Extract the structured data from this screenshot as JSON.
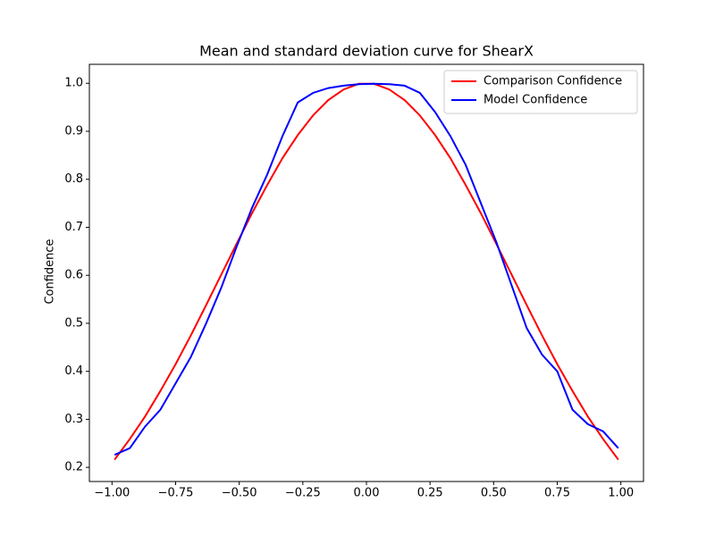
{
  "chart_data": {
    "type": "line",
    "title": "Mean and standard deviation curve for ShearX",
    "y_label": "Confidence",
    "x": [
      -0.99,
      -0.93,
      -0.87,
      -0.81,
      -0.75,
      -0.69,
      -0.63,
      -0.57,
      -0.51,
      -0.45,
      -0.39,
      -0.33,
      -0.27,
      -0.21,
      -0.15,
      -0.09,
      -0.03,
      0.03,
      0.09,
      0.15,
      0.21,
      0.27,
      0.33,
      0.39,
      0.45,
      0.51,
      0.57,
      0.63,
      0.69,
      0.75,
      0.81,
      0.87,
      0.93,
      0.99
    ],
    "series": [
      {
        "name": "Comparison Confidence",
        "color": "#ff0000",
        "values": [
          0.216,
          0.259,
          0.306,
          0.359,
          0.415,
          0.475,
          0.538,
          0.602,
          0.666,
          0.729,
          0.788,
          0.844,
          0.892,
          0.933,
          0.965,
          0.987,
          0.999,
          0.999,
          0.987,
          0.965,
          0.933,
          0.892,
          0.844,
          0.788,
          0.729,
          0.666,
          0.602,
          0.538,
          0.475,
          0.415,
          0.359,
          0.306,
          0.259,
          0.216
        ]
      },
      {
        "name": "Model Confidence",
        "color": "#0000ff",
        "values": [
          0.226,
          0.24,
          0.285,
          0.32,
          0.375,
          0.43,
          0.5,
          0.575,
          0.66,
          0.74,
          0.81,
          0.89,
          0.96,
          0.98,
          0.99,
          0.995,
          0.998,
          0.999,
          0.998,
          0.995,
          0.98,
          0.94,
          0.89,
          0.83,
          0.75,
          0.67,
          0.58,
          0.49,
          0.435,
          0.4,
          0.32,
          0.29,
          0.275,
          0.24
        ]
      }
    ],
    "xlim": [
      -1.089,
      1.089
    ],
    "ylim": [
      0.1705,
      1.0395
    ],
    "xticks": [
      {
        "value": -1,
        "label": "−1.00"
      },
      {
        "value": -0.75,
        "label": "−0.75"
      },
      {
        "value": -0.5,
        "label": "−0.50"
      },
      {
        "value": -0.25,
        "label": "−0.25"
      },
      {
        "value": 0,
        "label": "0.00"
      },
      {
        "value": 0.25,
        "label": "0.25"
      },
      {
        "value": 0.5,
        "label": "0.50"
      },
      {
        "value": 0.75,
        "label": "0.75"
      },
      {
        "value": 1,
        "label": "1.00"
      }
    ],
    "yticks": [
      0.2,
      0.3,
      0.4,
      0.5,
      0.6,
      0.7,
      0.8,
      0.9,
      {
        "value": 1,
        "label": "1.0"
      }
    ],
    "legend": "upper right"
  }
}
